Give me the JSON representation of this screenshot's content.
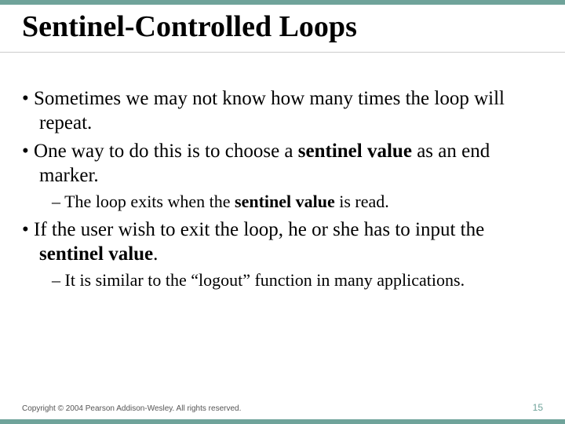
{
  "accent_color": "#6fa39a",
  "title": "Sentinel-Controlled Loops",
  "bullets": {
    "b1": {
      "pre": "Sometimes we may not know how many times the loop will repeat."
    },
    "b2": {
      "pre": "One way to do this is to choose a ",
      "bold": "sentinel value",
      "post": " as an end marker."
    },
    "b2sub": {
      "pre": "The loop exits when the ",
      "bold": "sentinel value",
      "post": " is read."
    },
    "b3": {
      "pre": "If the user wish to exit the loop, he or she has to input the ",
      "bold": "sentinel value",
      "post": "."
    },
    "b3sub": {
      "pre": "It is similar to the “logout” function in many applications."
    }
  },
  "copyright": "Copyright © 2004 Pearson Addison-Wesley. All rights reserved.",
  "page_number": "15"
}
